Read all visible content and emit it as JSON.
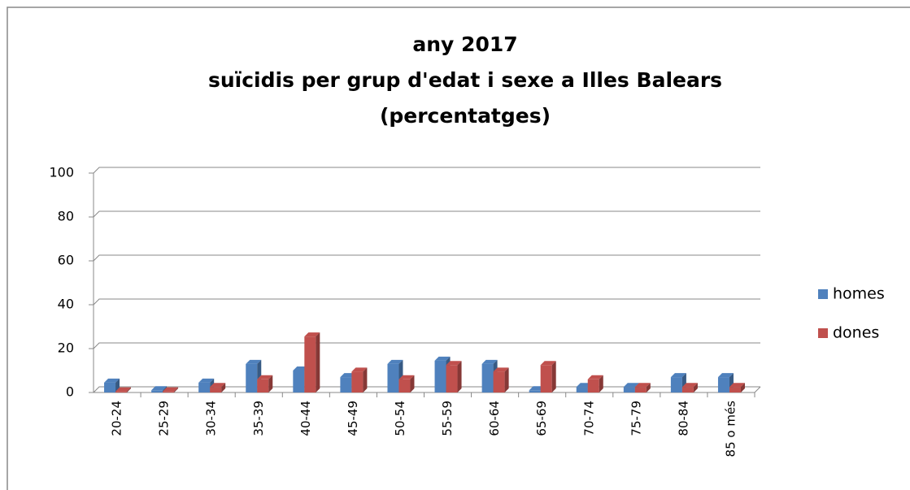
{
  "chart_data": {
    "type": "bar",
    "title": [
      "any 2017",
      "suïcidis per grup d'edat i sexe a Illes Balears",
      "(percentatges)"
    ],
    "categories": [
      "20-24",
      "25-29",
      "30-34",
      "35-39",
      "40-44",
      "45-49",
      "50-54",
      "55-59",
      "60-64",
      "65-69",
      "70-74",
      "75-79",
      "80-84",
      "85 o més"
    ],
    "series": [
      {
        "name": "homes",
        "color": "#4f81bd",
        "values": [
          4.5,
          1,
          4.5,
          13,
          10,
          7,
          13,
          14.5,
          13,
          1,
          2.5,
          2.5,
          7,
          7
        ]
      },
      {
        "name": "dones",
        "color": "#c0504d",
        "values": [
          0.5,
          0.5,
          2.5,
          6,
          25.5,
          9.5,
          6,
          12.5,
          9.5,
          12.5,
          6,
          2.5,
          2.5,
          2.5
        ]
      }
    ],
    "ylim": [
      0,
      100
    ],
    "yticks": [
      0,
      20,
      40,
      60,
      80,
      100
    ],
    "grid": true,
    "legend": "right"
  }
}
